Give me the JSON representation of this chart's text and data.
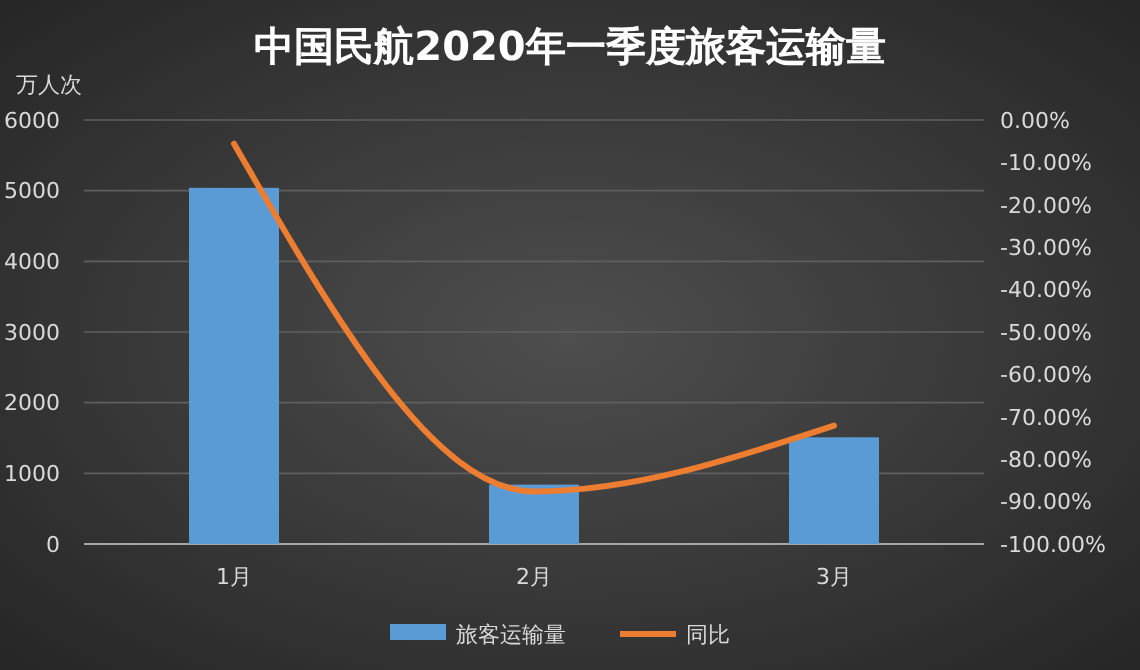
{
  "chart_data": {
    "type": "bar",
    "title": "中国民航2020年一季度旅客运输量",
    "ylabel": "万人次",
    "categories": [
      "1月",
      "2月",
      "3月"
    ],
    "series": [
      {
        "name": "旅客运输量",
        "color": "#5b9bd5",
        "values": [
          5040,
          840,
          1510
        ]
      },
      {
        "name": "同比",
        "type": "line",
        "axis": "y2",
        "color": "#ed7d31",
        "values": [
          -5.6,
          -87.6,
          -72.1
        ]
      }
    ],
    "ylim": [
      0,
      6000
    ],
    "yticks": [
      0,
      1000,
      2000,
      3000,
      4000,
      5000,
      6000
    ],
    "y2lim": [
      -100,
      0
    ],
    "y2ticks": [
      {
        "value": 0,
        "label": "0.00%"
      },
      {
        "value": -10,
        "label": "-10.00%"
      },
      {
        "value": -20,
        "label": "-20.00%"
      },
      {
        "value": -30,
        "label": "-30.00%"
      },
      {
        "value": -40,
        "label": "-40.00%"
      },
      {
        "value": -50,
        "label": "-50.00%"
      },
      {
        "value": -60,
        "label": "-60.00%"
      },
      {
        "value": -70,
        "label": "-70.00%"
      },
      {
        "value": -80,
        "label": "-80.00%"
      },
      {
        "value": -90,
        "label": "-90.00%"
      },
      {
        "value": -100,
        "label": "-100.00%"
      }
    ],
    "grid": "y",
    "legend": "bottom",
    "marker": "none"
  }
}
